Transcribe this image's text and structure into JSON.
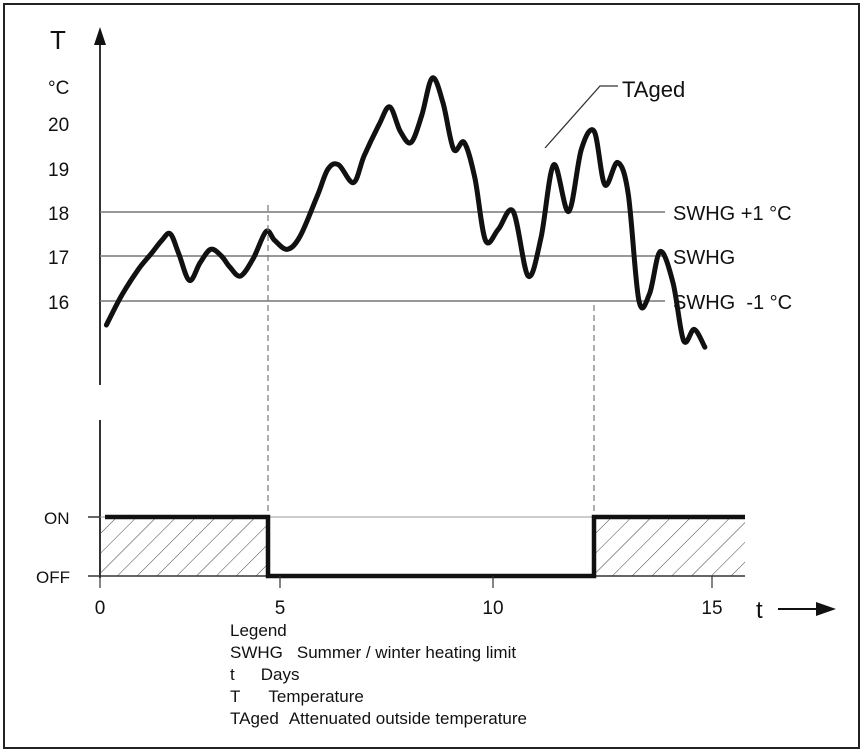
{
  "chart_data": {
    "type": "line",
    "y_axis": {
      "symbol": "T",
      "unit": "°C",
      "ticks": [
        "16",
        "17",
        "18",
        "19",
        "20"
      ]
    },
    "x_axis": {
      "symbol": "t",
      "ticks": [
        "0",
        "5",
        "10",
        "15"
      ]
    },
    "curve_label": "TAged",
    "thresholds": [
      {
        "label": "SWHG +1 °C",
        "value": 18
      },
      {
        "label": "SWHG",
        "value": 17
      },
      {
        "label": "SWHG  -1 °C",
        "value": 16
      }
    ],
    "series": [
      {
        "name": "TAged",
        "x": [
          0.15,
          0.5,
          0.9,
          1.2,
          1.45,
          1.65,
          1.85,
          2.1,
          2.35,
          2.6,
          2.85,
          3.05,
          3.3,
          3.6,
          3.9,
          4.1,
          4.4,
          4.7,
          5.1,
          5.35,
          5.6,
          5.95,
          6.2,
          6.55,
          6.8,
          7.05,
          7.3,
          7.55,
          7.8,
          8.05,
          8.3,
          8.55,
          8.8,
          9.05,
          9.35,
          9.7,
          10.05,
          10.35,
          10.65,
          11.0,
          11.3,
          11.6,
          11.85,
          12.15,
          12.4,
          12.65,
          12.9,
          13.15,
          13.45,
          13.7,
          13.95,
          14.2
        ],
        "y": [
          15.45,
          16.1,
          16.7,
          17.05,
          17.35,
          17.5,
          17.05,
          16.45,
          16.85,
          17.15,
          17.0,
          16.75,
          16.55,
          16.95,
          17.55,
          17.35,
          17.15,
          17.45,
          18.35,
          18.95,
          19.05,
          18.65,
          19.25,
          19.95,
          20.35,
          19.8,
          19.55,
          20.15,
          21.0,
          20.45,
          19.4,
          19.55,
          18.75,
          17.35,
          17.6,
          18.0,
          16.55,
          17.4,
          19.05,
          18.0,
          19.4,
          19.8,
          18.6,
          19.1,
          18.4,
          16.0,
          16.15,
          17.1,
          16.4,
          15.1,
          15.35,
          14.95
        ]
      },
      {
        "name": "ON / OFF",
        "x": [
          0.15,
          4.75,
          4.75,
          12.35,
          12.35,
          15.8
        ],
        "y": [
          "ON",
          "ON",
          "OFF",
          "OFF",
          "ON",
          "ON"
        ]
      }
    ],
    "state_labels": [
      "ON",
      "OFF"
    ],
    "switch_points": [
      4.75,
      12.35
    ]
  },
  "legend": {
    "title": "Legend",
    "items": [
      {
        "key": "SWHG",
        "text": "Summer / winter heating limit"
      },
      {
        "key": "t",
        "text": "Days"
      },
      {
        "key": "T",
        "text": "Temperature"
      },
      {
        "key": "TAged",
        "text": "Attenuated outside temperature"
      }
    ]
  }
}
